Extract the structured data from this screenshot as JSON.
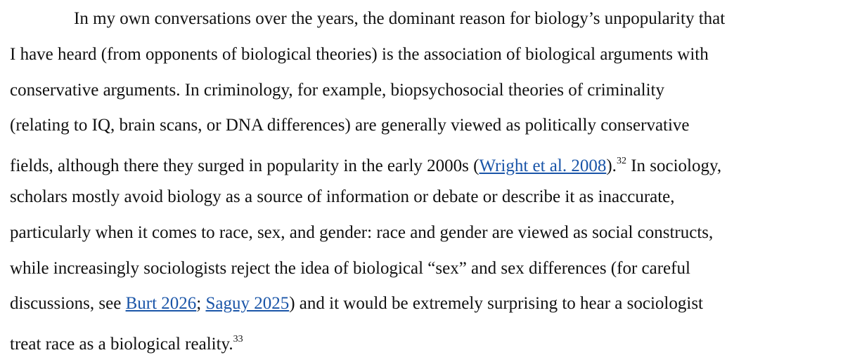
{
  "paragraph": {
    "lines": [
      [
        {
          "text": "In my own conversations over the years, the dominant reason for biology’s unpopularity that"
        }
      ],
      [
        {
          "text": "I have heard (from opponents of biological theories) is the association of biological arguments with"
        }
      ],
      [
        {
          "text": "conservative arguments. In criminology, for example, biopsychosocial theories of criminality"
        }
      ],
      [
        {
          "text": "(relating to IQ, brain scans, or DNA differences) are generally viewed as politically conservative"
        }
      ],
      [
        {
          "text": "fields, although there they surged in popularity in the early 2000s ("
        },
        {
          "link": "Wright et al. 2008"
        },
        {
          "text": ")."
        },
        {
          "sup": "32"
        },
        {
          "text": " In sociology,"
        }
      ],
      [
        {
          "text": "scholars mostly avoid biology as a source of information or debate or describe it as inaccurate,"
        }
      ],
      [
        {
          "text": "particularly when it comes to race, sex, and gender: race and gender are viewed as social constructs,"
        }
      ],
      [
        {
          "text": "while increasingly sociologists reject the idea of biological “sex” and sex differences (for careful"
        }
      ],
      [
        {
          "text": "discussions, see "
        },
        {
          "link": "Burt 2026"
        },
        {
          "text": "; "
        },
        {
          "link": "Saguy 2025"
        },
        {
          "text": ") and it would be extremely surprising to hear a sociologist"
        }
      ],
      [
        {
          "text": "treat race as a biological reality."
        },
        {
          "sup": "33"
        }
      ]
    ]
  }
}
